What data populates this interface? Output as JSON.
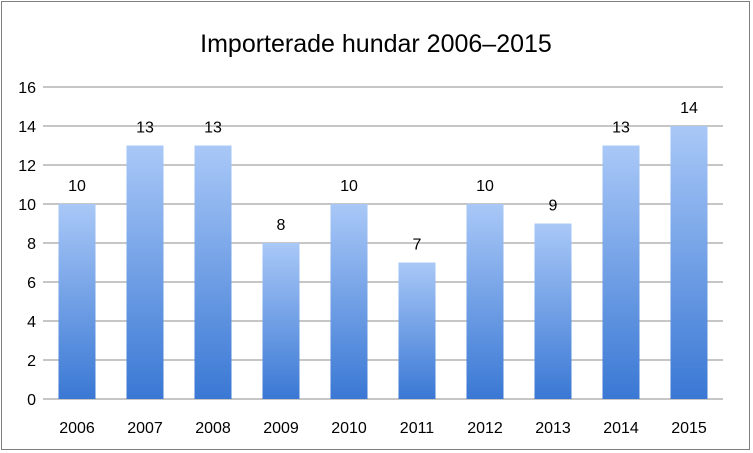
{
  "chart_data": {
    "type": "bar",
    "title": "Importerade hundar 2006–2015",
    "categories": [
      "2006",
      "2007",
      "2008",
      "2009",
      "2010",
      "2011",
      "2012",
      "2013",
      "2014",
      "2015"
    ],
    "values": [
      10,
      13,
      13,
      8,
      10,
      7,
      10,
      9,
      13,
      14
    ],
    "xlabel": "",
    "ylabel": "",
    "ylim": [
      0,
      16
    ],
    "yticks": [
      0,
      2,
      4,
      6,
      8,
      10,
      12,
      14,
      16
    ],
    "grid": true,
    "legend": "none",
    "bar_gradient": [
      "#a9c8f7",
      "#3a78d4"
    ]
  }
}
